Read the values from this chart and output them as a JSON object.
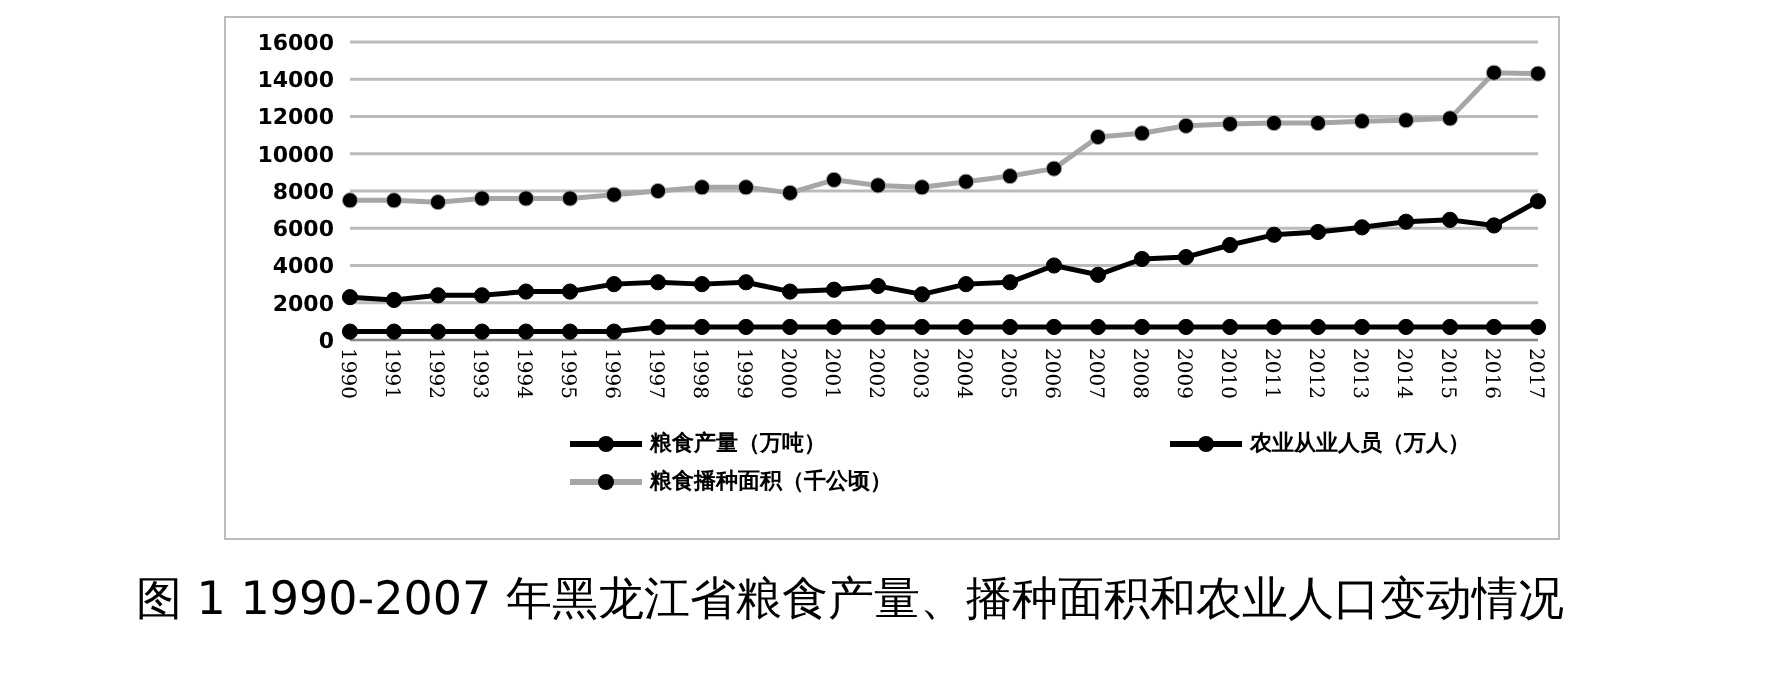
{
  "chart_data": {
    "type": "line",
    "title": "图 1 1990-2007 年黑龙江省粮食产量、播种面积和农业人口变动情况",
    "categories": [
      "1990",
      "1991",
      "1992",
      "1993",
      "1994",
      "1995",
      "1996",
      "1997",
      "1998",
      "1999",
      "2000",
      "2001",
      "2002",
      "2003",
      "2004",
      "2005",
      "2006",
      "2007",
      "2008",
      "2009",
      "2010",
      "2011",
      "2012",
      "2013",
      "2014",
      "2015",
      "2016",
      "2017"
    ],
    "series": [
      {
        "name": "粮食产量（万吨）",
        "color": "#000000",
        "values": [
          2300,
          2150,
          2400,
          2400,
          2600,
          2600,
          3000,
          3100,
          3000,
          3100,
          2600,
          2700,
          2900,
          2450,
          3000,
          3100,
          4000,
          3500,
          4350,
          4450,
          5100,
          5650,
          5800,
          6050,
          6350,
          6450,
          6150,
          7450
        ]
      },
      {
        "name": "农业从业人员（万人）",
        "color": "#000000",
        "values": [
          450,
          450,
          450,
          450,
          450,
          450,
          450,
          700,
          700,
          700,
          700,
          700,
          700,
          700,
          700,
          700,
          700,
          700,
          700,
          700,
          700,
          700,
          700,
          700,
          700,
          700,
          700,
          700
        ]
      },
      {
        "name": "粮食播种面积（千公顷）",
        "color": "#a6a6a6",
        "values": [
          7500,
          7500,
          7400,
          7600,
          7600,
          7600,
          7800,
          8000,
          8200,
          8200,
          7900,
          8600,
          8300,
          8200,
          8500,
          8800,
          9200,
          10900,
          11100,
          11500,
          11600,
          11650,
          11650,
          11750,
          11800,
          11900,
          14350,
          14300
        ]
      }
    ],
    "ylim": [
      0,
      16000
    ],
    "yticks": [
      0,
      2000,
      4000,
      6000,
      8000,
      10000,
      12000,
      14000,
      16000
    ],
    "grid": "y",
    "legend": "bottom",
    "marker": "circle",
    "line_style": "solid"
  }
}
